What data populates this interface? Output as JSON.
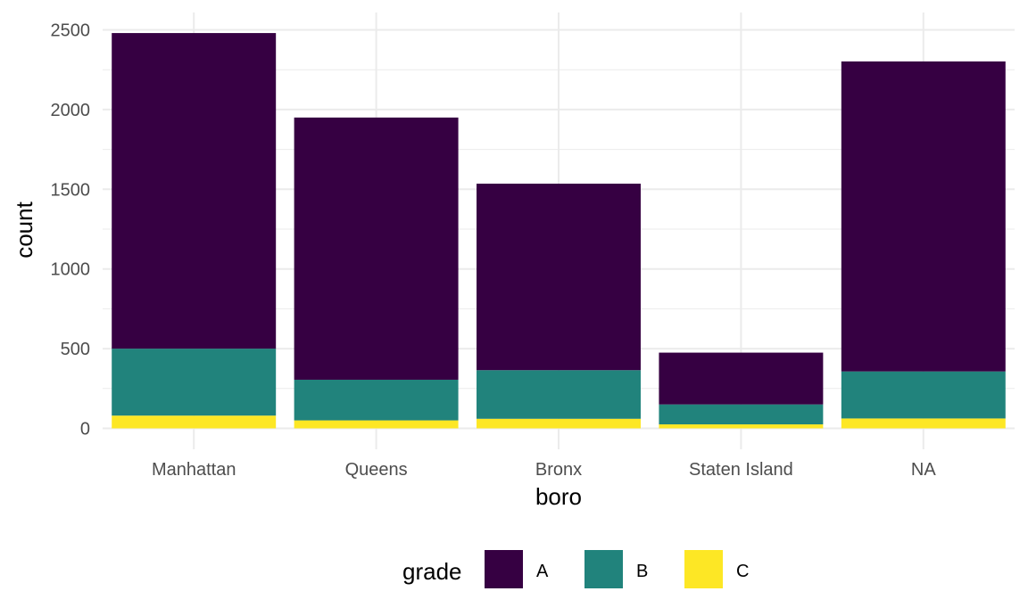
{
  "chart_data": {
    "type": "bar",
    "stacked": true,
    "categories": [
      "Manhattan",
      "Queens",
      "Bronx",
      "Staten Island",
      "NA"
    ],
    "series": [
      {
        "name": "A",
        "values": [
          1980,
          1645,
          1170,
          325,
          1945
        ]
      },
      {
        "name": "B",
        "values": [
          420,
          255,
          305,
          125,
          295
        ]
      },
      {
        "name": "C",
        "values": [
          80,
          50,
          60,
          25,
          62
        ]
      }
    ],
    "xlabel": "boro",
    "ylabel": "count",
    "yticks": [
      0,
      500,
      1000,
      1500,
      2000,
      2500
    ],
    "ylim": [
      0,
      2600
    ],
    "grid": true,
    "legend": {
      "title": "grade",
      "position": "bottom"
    },
    "colors": {
      "A": "#360042",
      "B": "#21837c",
      "C": "#fde725"
    }
  }
}
